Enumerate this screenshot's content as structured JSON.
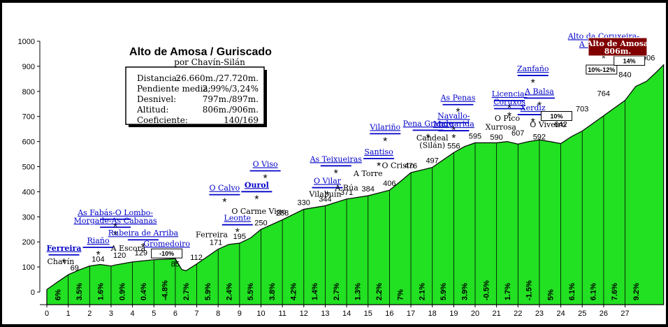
{
  "chart_data": {
    "type": "area",
    "title": "Alto de Amosa / Guriscado",
    "subtitle": "por Chavín-Silán",
    "xlim": [
      0,
      28
    ],
    "ylim": [
      0,
      1000
    ],
    "xticks": [
      0,
      1,
      2,
      3,
      4,
      5,
      6,
      7,
      8,
      9,
      10,
      11,
      12,
      13,
      14,
      15,
      16,
      17,
      18,
      19,
      20,
      21,
      22,
      23,
      24,
      25,
      26,
      27
    ],
    "yticks": [
      0,
      100,
      200,
      300,
      400,
      500,
      600,
      700,
      800,
      900,
      1000
    ],
    "profile": [
      [
        0.0,
        10
      ],
      [
        0.5,
        40
      ],
      [
        1.0,
        69
      ],
      [
        1.5,
        88
      ],
      [
        2.0,
        104
      ],
      [
        2.5,
        110
      ],
      [
        3.0,
        104
      ],
      [
        3.2,
        108
      ],
      [
        4.0,
        120
      ],
      [
        5.0,
        129
      ],
      [
        5.5,
        131
      ],
      [
        6.0,
        133
      ],
      [
        6.3,
        90
      ],
      [
        6.5,
        85
      ],
      [
        7.0,
        112
      ],
      [
        8.0,
        171
      ],
      [
        8.5,
        190
      ],
      [
        9.0,
        195
      ],
      [
        9.5,
        215
      ],
      [
        10.0,
        250
      ],
      [
        11.0,
        288
      ],
      [
        12.0,
        330
      ],
      [
        13.0,
        344
      ],
      [
        14.0,
        371
      ],
      [
        15.0,
        384
      ],
      [
        15.5,
        395
      ],
      [
        16.0,
        406
      ],
      [
        16.5,
        440
      ],
      [
        17.0,
        476
      ],
      [
        18.0,
        497
      ],
      [
        19.0,
        556
      ],
      [
        19.5,
        580
      ],
      [
        20.0,
        595
      ],
      [
        21.0,
        595
      ],
      [
        21.5,
        600
      ],
      [
        22.0,
        590
      ],
      [
        22.5,
        600
      ],
      [
        23.0,
        607
      ],
      [
        23.5,
        600
      ],
      [
        24.0,
        592
      ],
      [
        24.5,
        620
      ],
      [
        25.0,
        642
      ],
      [
        26.0,
        703
      ],
      [
        27.0,
        764
      ],
      [
        27.5,
        820
      ],
      [
        28.0,
        840
      ],
      [
        28.5,
        880
      ],
      [
        28.8,
        906
      ]
    ],
    "alt_labels": [
      {
        "x": 1.0,
        "y": 69,
        "text": "69"
      },
      {
        "x": 2.0,
        "y": 104,
        "text": "104"
      },
      {
        "x": 3.0,
        "y": 120,
        "text": "120"
      },
      {
        "x": 4.0,
        "y": 129,
        "text": "129"
      },
      {
        "x": 5.0,
        "y": 133,
        "text": "133"
      },
      {
        "x": 5.7,
        "y": 85,
        "text": "85"
      },
      {
        "x": 6.6,
        "y": 112,
        "text": "112"
      },
      {
        "x": 7.5,
        "y": 171,
        "text": "171"
      },
      {
        "x": 8.6,
        "y": 195,
        "text": "195"
      },
      {
        "x": 9.6,
        "y": 250,
        "text": "250"
      },
      {
        "x": 10.6,
        "y": 288,
        "text": "288"
      },
      {
        "x": 11.6,
        "y": 330,
        "text": "330"
      },
      {
        "x": 12.6,
        "y": 344,
        "text": "344"
      },
      {
        "x": 13.6,
        "y": 371,
        "text": "371"
      },
      {
        "x": 14.6,
        "y": 384,
        "text": "384"
      },
      {
        "x": 15.6,
        "y": 406,
        "text": "406"
      },
      {
        "x": 16.6,
        "y": 476,
        "text": "476"
      },
      {
        "x": 17.6,
        "y": 497,
        "text": "497"
      },
      {
        "x": 18.6,
        "y": 556,
        "text": "556"
      },
      {
        "x": 19.6,
        "y": 595,
        "text": "595"
      },
      {
        "x": 20.6,
        "y": 590,
        "text": "590"
      },
      {
        "x": 21.6,
        "y": 607,
        "text": "607"
      },
      {
        "x": 22.6,
        "y": 592,
        "text": "592"
      },
      {
        "x": 23.6,
        "y": 642,
        "text": "642"
      },
      {
        "x": 24.6,
        "y": 703,
        "text": "703"
      },
      {
        "x": 25.6,
        "y": 764,
        "text": "764"
      },
      {
        "x": 26.6,
        "y": 840,
        "text": "840"
      },
      {
        "x": 27.7,
        "y": 906,
        "text": "906"
      }
    ],
    "gradients": [
      {
        "x": 0.5,
        "text": "6%"
      },
      {
        "x": 1.5,
        "text": "3.5%"
      },
      {
        "x": 2.5,
        "text": "1.6%"
      },
      {
        "x": 3.5,
        "text": "0.9%"
      },
      {
        "x": 4.5,
        "text": "0.4%"
      },
      {
        "x": 5.5,
        "text": "-4.8%"
      },
      {
        "x": 6.5,
        "text": "2.7%"
      },
      {
        "x": 7.5,
        "text": "5.9%"
      },
      {
        "x": 8.5,
        "text": "2.4%"
      },
      {
        "x": 9.5,
        "text": "5.5%"
      },
      {
        "x": 10.5,
        "text": "3.8%"
      },
      {
        "x": 11.5,
        "text": "4.2%"
      },
      {
        "x": 12.5,
        "text": "1.4%"
      },
      {
        "x": 13.5,
        "text": "2.7%"
      },
      {
        "x": 14.5,
        "text": "1.3%"
      },
      {
        "x": 15.5,
        "text": "2.2%"
      },
      {
        "x": 16.5,
        "text": "7%"
      },
      {
        "x": 17.5,
        "text": "2.1%"
      },
      {
        "x": 18.5,
        "text": "5.9%"
      },
      {
        "x": 19.5,
        "text": "3.9%"
      },
      {
        "x": 20.5,
        "text": "-0.5%"
      },
      {
        "x": 21.5,
        "text": "1.7%"
      },
      {
        "x": 22.5,
        "text": "-1.5%"
      },
      {
        "x": 23.5,
        "text": "5%"
      },
      {
        "x": 24.5,
        "text": "6.1%"
      },
      {
        "x": 25.5,
        "text": "6.1%"
      },
      {
        "x": 26.5,
        "text": "7.6%"
      },
      {
        "x": 27.5,
        "text": "9.2%"
      }
    ],
    "places_blue": [
      {
        "x": 0.8,
        "y": 165,
        "text": "Ferreira",
        "bold": true
      },
      {
        "x": 2.4,
        "y": 195,
        "text": "Riaño"
      },
      {
        "x": 3.2,
        "y": 307,
        "text": "As Fabás-O Lombo-"
      },
      {
        "x": 3.2,
        "y": 275,
        "text": "Morgade-As Cabanas"
      },
      {
        "x": 4.5,
        "y": 225,
        "text": "Rubeira de Arriba"
      },
      {
        "x": 5.6,
        "y": 183,
        "text": "Gromedoiro"
      },
      {
        "x": 8.3,
        "y": 405,
        "text": "O Calvo"
      },
      {
        "x": 8.9,
        "y": 285,
        "text": "Leonte"
      },
      {
        "x": 10.2,
        "y": 500,
        "text": "O Viso"
      },
      {
        "x": 9.8,
        "y": 417,
        "text": "Ourol",
        "bold": true
      },
      {
        "x": 13.5,
        "y": 520,
        "text": "As Teixueiras"
      },
      {
        "x": 13.1,
        "y": 433,
        "text": "O Vilar"
      },
      {
        "x": 15.8,
        "y": 648,
        "text": "Vilariño"
      },
      {
        "x": 15.5,
        "y": 549,
        "text": "Santiso"
      },
      {
        "x": 17.8,
        "y": 662,
        "text": "Pena Grande"
      },
      {
        "x": 19.2,
        "y": 764,
        "text": "As Penas"
      },
      {
        "x": 21.6,
        "y": 780,
        "text": "Licencia-"
      },
      {
        "x": 21.6,
        "y": 748,
        "text": "Coruxos"
      },
      {
        "x": 22.7,
        "y": 880,
        "text": "Zanfaño"
      },
      {
        "x": 23.0,
        "y": 790,
        "text": "A Balsa"
      },
      {
        "x": 22.7,
        "y": 724,
        "text": "Xerdiz"
      },
      {
        "x": 26.0,
        "y": 1010,
        "text": "Alto da Coruxeira-"
      },
      {
        "x": 26.0,
        "y": 978,
        "text": "A Gañudoira"
      },
      {
        "x": 19.0,
        "y": 692,
        "text": "Navallo-"
      },
      {
        "x": 19.0,
        "y": 660,
        "text": "Margarida"
      }
    ],
    "places_black": [
      {
        "x": 0.65,
        "y": 112,
        "text": "Chavín"
      },
      {
        "x": 3.8,
        "y": 165,
        "text": "A Escora"
      },
      {
        "x": 7.7,
        "y": 218,
        "text": "Ferreira"
      },
      {
        "x": 9.9,
        "y": 312,
        "text": "O Carme Vigo"
      },
      {
        "x": 13.0,
        "y": 380,
        "text": "Vilabuín"
      },
      {
        "x": 14.0,
        "y": 405,
        "text": "A Rúa"
      },
      {
        "x": 15.0,
        "y": 462,
        "text": "A Torre"
      },
      {
        "x": 16.4,
        "y": 495,
        "text": "O Cristo"
      },
      {
        "x": 18.0,
        "y": 605,
        "text": "Candeal"
      },
      {
        "x": 18.0,
        "y": 575,
        "text": "(Silán)"
      },
      {
        "x": 21.5,
        "y": 683,
        "text": "O Pico"
      },
      {
        "x": 21.2,
        "y": 648,
        "text": "Xurrosa"
      },
      {
        "x": 23.4,
        "y": 657,
        "text": "O Viveiro"
      }
    ],
    "callouts": [
      {
        "x": 5.6,
        "y": 147,
        "text": "-10%"
      },
      {
        "x": 23.8,
        "y": 695,
        "text": "10%"
      },
      {
        "x": 25.9,
        "y": 880,
        "text": "10%-12%"
      },
      {
        "x": 27.2,
        "y": 915,
        "text": "14%"
      }
    ],
    "summit_label": [
      "Alto de Amosa",
      "806m."
    ],
    "info_box": {
      "rows": [
        [
          "Distancia:",
          "26.660m./27.720m."
        ],
        [
          "Pendiente media:",
          "2,99%/3,24%"
        ],
        [
          "Desnivel:",
          "797m./897m."
        ],
        [
          "Altitud:",
          "806m./906m."
        ],
        [
          "Coeficiente:",
          "140/169"
        ]
      ]
    }
  }
}
